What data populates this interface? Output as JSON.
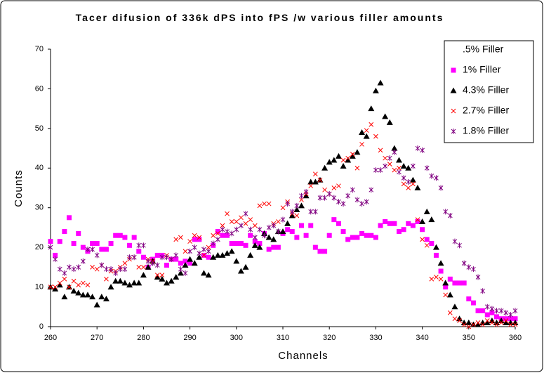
{
  "chart_data": {
    "type": "scatter",
    "title": "Tacer difusion of 336k dPS into fPS /w various filler amounts",
    "xlabel": "Channels",
    "ylabel": "Counts",
    "xlim": [
      260,
      360
    ],
    "ylim": [
      0,
      70
    ],
    "xticks": [
      260,
      270,
      280,
      290,
      300,
      310,
      320,
      330,
      340,
      350,
      360
    ],
    "yticks": [
      0,
      10,
      20,
      30,
      40,
      50,
      60,
      70
    ],
    "legend": "upper right",
    "x": [
      260,
      261,
      262,
      263,
      264,
      265,
      266,
      267,
      268,
      269,
      270,
      271,
      272,
      273,
      274,
      275,
      276,
      277,
      278,
      279,
      280,
      281,
      282,
      283,
      284,
      285,
      286,
      287,
      288,
      289,
      290,
      291,
      292,
      293,
      294,
      295,
      296,
      297,
      298,
      299,
      300,
      301,
      302,
      303,
      304,
      305,
      306,
      307,
      308,
      309,
      310,
      311,
      312,
      313,
      314,
      315,
      316,
      317,
      318,
      319,
      320,
      321,
      322,
      323,
      324,
      325,
      326,
      327,
      328,
      329,
      330,
      331,
      332,
      333,
      334,
      335,
      336,
      337,
      338,
      339,
      340,
      341,
      342,
      343,
      344,
      345,
      346,
      347,
      348,
      349,
      350,
      351,
      352,
      353,
      354,
      355,
      356,
      357,
      358,
      359,
      360
    ],
    "series": [
      {
        "name": ".5% Filler",
        "color": "#000000",
        "marker": "none",
        "values": [
          null,
          null,
          null,
          null,
          null,
          null,
          null,
          null,
          null,
          null,
          null,
          null,
          null,
          null,
          null,
          null,
          null,
          null,
          null,
          null,
          null,
          null,
          null,
          null,
          null,
          null,
          null,
          null,
          null,
          null,
          null,
          null,
          null,
          null,
          null,
          null,
          null,
          null,
          null,
          null,
          null,
          null,
          null,
          null,
          null,
          null,
          null,
          null,
          null,
          null,
          null,
          null,
          null,
          null,
          null,
          null,
          null,
          null,
          null,
          null,
          null,
          null,
          null,
          null,
          null,
          null,
          null,
          null,
          null,
          null,
          null,
          null,
          null,
          null,
          null,
          null,
          null,
          null,
          null,
          null,
          null,
          null,
          null,
          null,
          null,
          null,
          null,
          null,
          null,
          null,
          null,
          null,
          null,
          null,
          null,
          null,
          null,
          null,
          null,
          null,
          null
        ]
      },
      {
        "name": "1% Filler",
        "color": "#ff00ff",
        "marker": "square",
        "values": [
          21.5,
          18,
          21.5,
          24,
          27.5,
          21,
          23.5,
          20,
          19,
          21,
          21,
          19.5,
          19.5,
          21,
          23,
          23,
          22.5,
          20.5,
          22.5,
          19,
          17.5,
          15,
          17,
          18,
          18,
          15.5,
          17,
          17,
          16,
          16.5,
          16,
          22,
          22,
          18,
          17.5,
          20.5,
          24,
          23,
          23,
          21,
          21,
          21,
          20.5,
          23,
          21.5,
          21,
          23.5,
          19.5,
          20,
          20,
          23.5,
          24.5,
          24,
          22.5,
          25.5,
          23,
          25.5,
          20,
          19,
          19,
          23,
          27,
          26,
          24,
          22,
          22.5,
          22.5,
          23.5,
          23,
          23,
          22.5,
          25.5,
          26.5,
          26,
          26,
          24,
          24.5,
          26,
          25.5,
          26.5,
          24.5,
          22,
          21,
          18,
          14,
          10,
          12,
          11,
          11,
          11,
          7,
          6,
          4,
          4,
          3,
          3.5,
          2.5,
          2,
          2,
          2,
          2
        ]
      },
      {
        "name": "4.3% Filler",
        "color": "#000000",
        "marker": "triangle",
        "values": [
          10,
          9.5,
          10.5,
          7.5,
          10,
          9,
          8.5,
          8,
          8,
          7.5,
          5.5,
          7.5,
          7,
          10,
          11.5,
          11.5,
          11,
          10.5,
          11,
          11,
          13,
          15,
          16.5,
          12.5,
          12,
          11,
          11.5,
          12.5,
          13.5,
          15.5,
          17,
          16,
          17.5,
          13.5,
          13,
          17.5,
          18,
          18,
          18.5,
          19,
          16.5,
          14,
          15,
          18,
          20.5,
          20,
          23.5,
          22.5,
          22,
          24,
          24,
          26,
          28,
          29.5,
          30.5,
          33,
          36.5,
          36.5,
          37,
          40,
          41.5,
          42,
          43,
          40.5,
          42,
          43,
          44,
          49,
          48,
          55,
          59.5,
          61.5,
          53,
          51.5,
          45,
          42,
          40.5,
          40,
          37,
          35,
          26.5,
          29,
          27,
          20,
          16,
          11,
          8,
          5,
          2,
          1,
          1,
          0.5,
          0.5,
          1,
          1,
          1.5,
          1,
          1.5,
          1,
          1,
          1
        ]
      },
      {
        "name": "2.7% Filler",
        "color": "#ff0000",
        "marker": "x",
        "values": [
          10,
          10,
          11,
          12,
          10,
          11.5,
          10.5,
          11,
          10.5,
          15,
          14.5,
          15.5,
          12,
          14,
          14,
          15,
          16,
          17,
          17.5,
          15,
          15,
          17,
          16.5,
          13,
          13,
          18,
          17,
          22,
          22.5,
          19,
          21.5,
          23,
          22.5,
          18,
          20,
          23,
          23.5,
          25.5,
          28.5,
          26.5,
          26.5,
          27.5,
          26,
          27,
          25.5,
          30.5,
          31,
          31,
          26,
          26.5,
          30,
          31.5,
          28.5,
          28,
          32,
          33.5,
          35.5,
          38.5,
          37,
          34.5,
          33.5,
          35,
          35.5,
          42,
          42.5,
          43.5,
          40,
          46,
          49.5,
          51,
          48,
          44.5,
          42.5,
          41,
          39.5,
          40,
          36,
          35,
          36,
          27,
          22,
          20.5,
          12,
          12.5,
          12,
          8,
          3.5,
          2,
          1.5,
          0.5,
          0,
          0.5,
          1,
          0.5,
          1.5,
          1,
          0.5,
          1,
          1.5,
          0.5,
          0.5
        ]
      },
      {
        "name": "1.8% Filler",
        "color": "#800080",
        "marker": "asterisk",
        "values": [
          20,
          17,
          14.5,
          13.5,
          15,
          14.5,
          15,
          16.5,
          19.5,
          19.5,
          18,
          15.5,
          14.5,
          14.5,
          13.5,
          14.5,
          14.5,
          17.5,
          17.5,
          20.5,
          20.5,
          16.5,
          16,
          15.5,
          17.5,
          17.5,
          17,
          18,
          14.5,
          13.5,
          19,
          20,
          18.5,
          19.5,
          19,
          21,
          22,
          24.5,
          24,
          23.5,
          24.5,
          25.5,
          28.5,
          24.5,
          22.5,
          24.5,
          23,
          25,
          25.5,
          24,
          27,
          31,
          29,
          30.5,
          33,
          34,
          29,
          29,
          32.5,
          32.5,
          33.5,
          32.5,
          31.5,
          31,
          33,
          34.5,
          32,
          31,
          31.5,
          34.5,
          39.5,
          39.5,
          40.5,
          42.5,
          44,
          39,
          37.5,
          36.5,
          40.5,
          45,
          44.5,
          40,
          38,
          37.5,
          35,
          29,
          28,
          21.5,
          20.5,
          16,
          15,
          14.5,
          12.5,
          9,
          5,
          4.5,
          4,
          4,
          3.5,
          3,
          4
        ]
      }
    ]
  }
}
